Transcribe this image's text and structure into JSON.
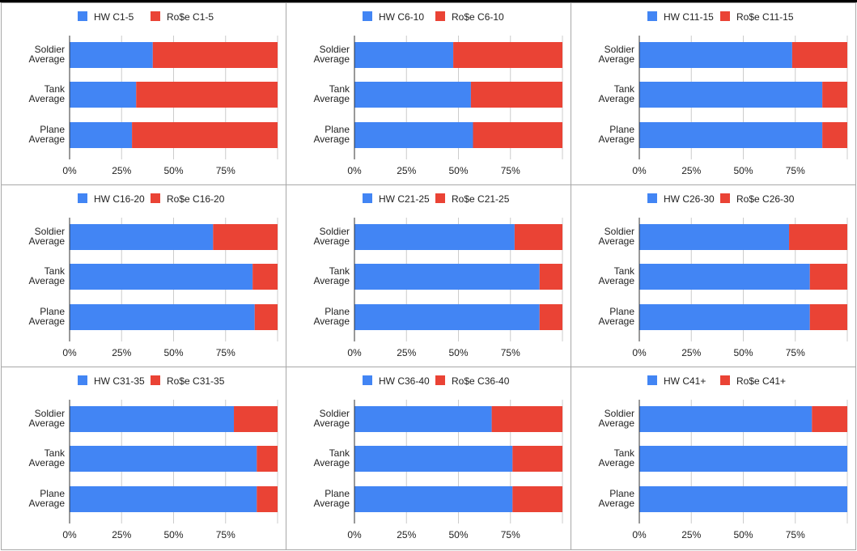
{
  "colors": {
    "hw": "#4285F4",
    "rose": "#EA4335",
    "grid": "#cccccc",
    "axis": "#333333",
    "border": "#a8a8a8"
  },
  "chart_data": [
    {
      "type": "bar",
      "stacked": true,
      "normalized": true,
      "orientation": "horizontal",
      "categories": [
        [
          "Soldier",
          "Average"
        ],
        [
          "Tank",
          "Average"
        ],
        [
          "Plane",
          "Average"
        ]
      ],
      "xticks": [
        "0%",
        "25%",
        "50%",
        "75%"
      ],
      "series": [
        {
          "name": "HW C1-5",
          "values": [
            40,
            32,
            30
          ]
        },
        {
          "name": "Ro$e C1-5",
          "values": [
            60,
            68,
            70
          ]
        }
      ]
    },
    {
      "type": "bar",
      "stacked": true,
      "normalized": true,
      "orientation": "horizontal",
      "categories": [
        [
          "Soldier",
          "Average"
        ],
        [
          "Tank",
          "Average"
        ],
        [
          "Plane",
          "Average"
        ]
      ],
      "xticks": [
        "0%",
        "25%",
        "50%",
        "75%"
      ],
      "series": [
        {
          "name": "HW C6-10",
          "values": [
            47.5,
            56,
            57
          ]
        },
        {
          "name": "Ro$e C6-10",
          "values": [
            52.5,
            44,
            43
          ]
        }
      ]
    },
    {
      "type": "bar",
      "stacked": true,
      "normalized": true,
      "orientation": "horizontal",
      "categories": [
        [
          "Soldier",
          "Average"
        ],
        [
          "Tank",
          "Average"
        ],
        [
          "Plane",
          "Average"
        ]
      ],
      "xticks": [
        "0%",
        "25%",
        "50%",
        "75%"
      ],
      "series": [
        {
          "name": "HW C11-15",
          "values": [
            73.5,
            88,
            88
          ]
        },
        {
          "name": "Ro$e C11-15",
          "values": [
            26.5,
            12,
            12
          ]
        }
      ]
    },
    {
      "type": "bar",
      "stacked": true,
      "normalized": true,
      "orientation": "horizontal",
      "categories": [
        [
          "Soldier",
          "Average"
        ],
        [
          "Tank",
          "Average"
        ],
        [
          "Plane",
          "Average"
        ]
      ],
      "xticks": [
        "0%",
        "25%",
        "50%",
        "75%"
      ],
      "series": [
        {
          "name": "HW C16-20",
          "values": [
            69,
            88,
            89
          ]
        },
        {
          "name": "Ro$e C16-20",
          "values": [
            31,
            12,
            11
          ]
        }
      ]
    },
    {
      "type": "bar",
      "stacked": true,
      "normalized": true,
      "orientation": "horizontal",
      "categories": [
        [
          "Soldier",
          "Average"
        ],
        [
          "Tank",
          "Average"
        ],
        [
          "Plane",
          "Average"
        ]
      ],
      "xticks": [
        "0%",
        "25%",
        "50%",
        "75%"
      ],
      "series": [
        {
          "name": "HW C21-25",
          "values": [
            77,
            89,
            89
          ]
        },
        {
          "name": "Ro$e C21-25",
          "values": [
            23,
            11,
            11
          ]
        }
      ]
    },
    {
      "type": "bar",
      "stacked": true,
      "normalized": true,
      "orientation": "horizontal",
      "categories": [
        [
          "Soldier",
          "Average"
        ],
        [
          "Tank",
          "Average"
        ],
        [
          "Plane",
          "Average"
        ]
      ],
      "xticks": [
        "0%",
        "25%",
        "50%",
        "75%"
      ],
      "series": [
        {
          "name": "HW C26-30",
          "values": [
            72,
            82,
            82
          ]
        },
        {
          "name": "Ro$e C26-30",
          "values": [
            28,
            18,
            18
          ]
        }
      ]
    },
    {
      "type": "bar",
      "stacked": true,
      "normalized": true,
      "orientation": "horizontal",
      "categories": [
        [
          "Soldier",
          "Average"
        ],
        [
          "Tank",
          "Average"
        ],
        [
          "Plane",
          "Average"
        ]
      ],
      "xticks": [
        "0%",
        "25%",
        "50%",
        "75%"
      ],
      "series": [
        {
          "name": "HW C31-35",
          "values": [
            79,
            90,
            90
          ]
        },
        {
          "name": "Ro$e C31-35",
          "values": [
            21,
            10,
            10
          ]
        }
      ]
    },
    {
      "type": "bar",
      "stacked": true,
      "normalized": true,
      "orientation": "horizontal",
      "categories": [
        [
          "Soldier",
          "Average"
        ],
        [
          "Tank",
          "Average"
        ],
        [
          "Plane",
          "Average"
        ]
      ],
      "xticks": [
        "0%",
        "25%",
        "50%",
        "75%"
      ],
      "series": [
        {
          "name": "HW C36-40",
          "values": [
            66,
            76,
            76
          ]
        },
        {
          "name": "Ro$e C36-40",
          "values": [
            34,
            24,
            24
          ]
        }
      ]
    },
    {
      "type": "bar",
      "stacked": true,
      "normalized": true,
      "orientation": "horizontal",
      "categories": [
        [
          "Soldier",
          "Average"
        ],
        [
          "Tank",
          "Average"
        ],
        [
          "Plane",
          "Average"
        ]
      ],
      "xticks": [
        "0%",
        "25%",
        "50%",
        "75%"
      ],
      "series": [
        {
          "name": "HW C41+",
          "values": [
            83,
            100,
            100
          ]
        },
        {
          "name": "Ro$e C41+",
          "values": [
            17,
            0,
            0
          ]
        }
      ]
    }
  ]
}
